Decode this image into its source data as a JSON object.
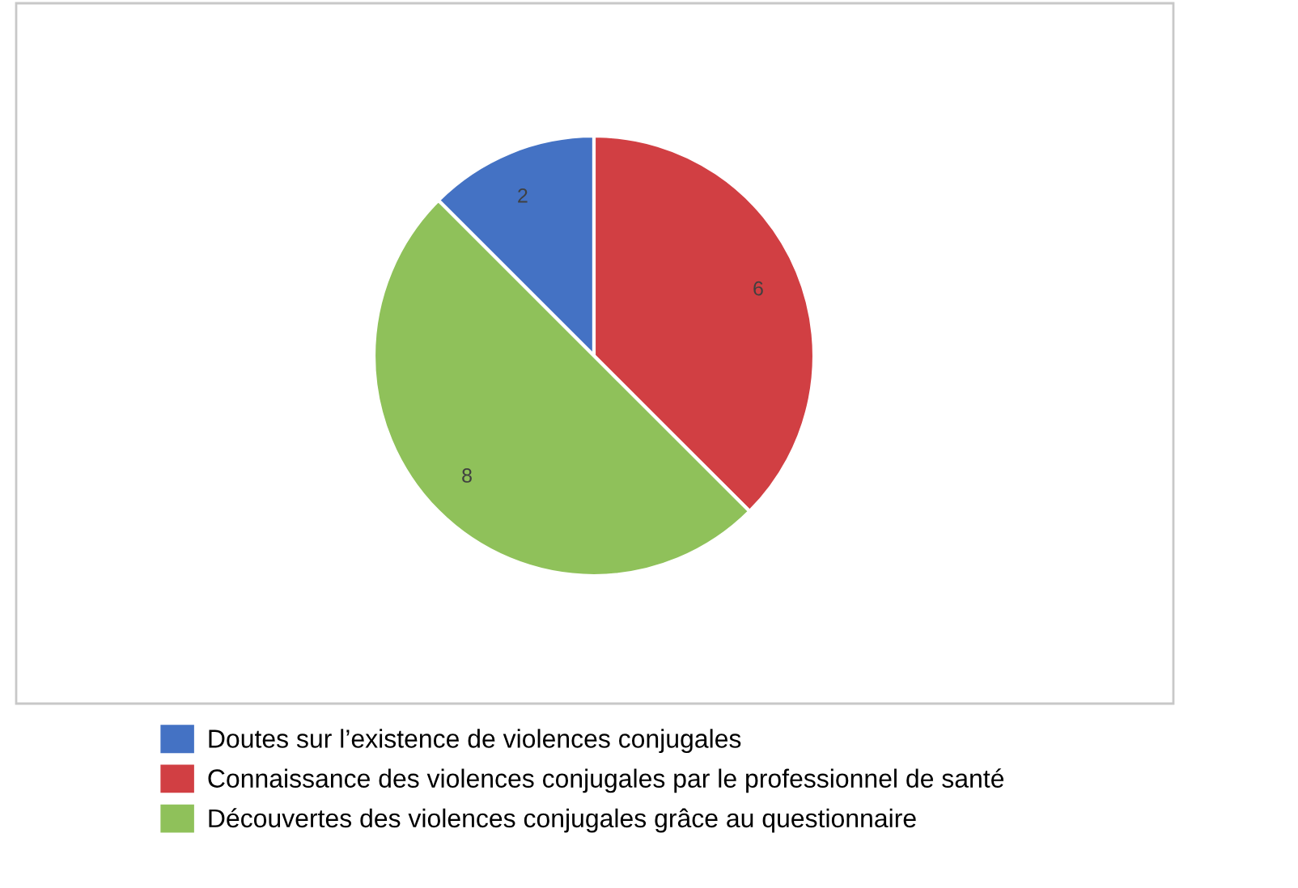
{
  "chart_data": {
    "type": "pie",
    "categories": [
      "Doutes sur l’existence de violences conjugales",
      "Connaissance des violences conjugales par le professionnel de santé",
      "Découvertes des violences conjugales grâce au questionnaire"
    ],
    "values": [
      2,
      6,
      8
    ],
    "colors": [
      "#4472c4",
      "#d13f43",
      "#8fc15a"
    ],
    "data_labels": true,
    "legend": "bottom"
  }
}
